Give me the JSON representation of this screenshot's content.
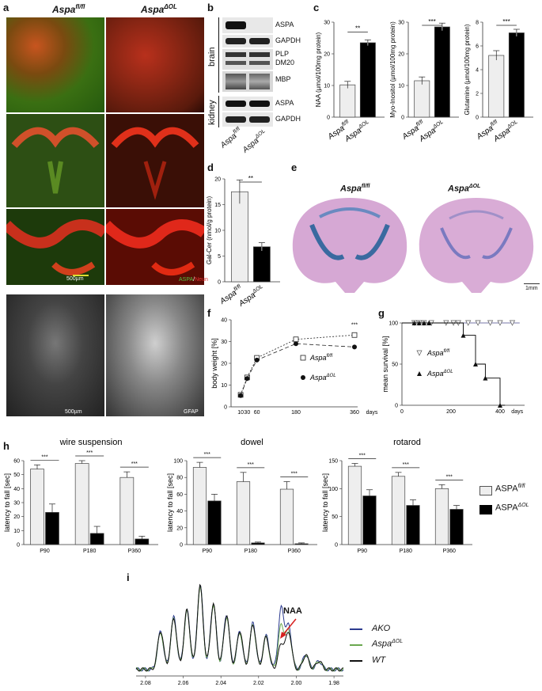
{
  "panels": {
    "a": {
      "letter": "a",
      "col1": "Aspa",
      "col1_sup": "fl/fl",
      "col2": "Aspa",
      "col2_sup": "ΔOL",
      "scale1": "500µm",
      "stain1": "ASPA",
      "stain1_sep": "/",
      "stain2": "Neun",
      "scale2": "500µm",
      "stain3": "GFAP"
    },
    "b": {
      "letter": "b",
      "groups": [
        "brain",
        "kidney"
      ],
      "bands": [
        "ASPA",
        "GAPDH",
        "PLP",
        "DM20",
        "MBP",
        "ASPA",
        "GAPDH"
      ],
      "xlabels": [
        {
          "t": "Aspa",
          "sup": "fl/fl"
        },
        {
          "t": "Aspa",
          "sup": "ΔOL"
        }
      ]
    },
    "c": {
      "letter": "c"
    },
    "d": {
      "letter": "d"
    },
    "e": {
      "letter": "e",
      "label1": "Aspa",
      "label1_sup": "fl/fl",
      "label2": "Aspa",
      "label2_sup": "ΔOL",
      "scale": "1mm"
    },
    "f": {
      "letter": "f"
    },
    "g": {
      "letter": "g"
    },
    "h": {
      "letter": "h",
      "legend": [
        {
          "t": "ASPA",
          "sup": "fl/fl"
        },
        {
          "t": "ASPA",
          "sup": "ΔOL"
        }
      ]
    },
    "i": {
      "letter": "i",
      "annotation": "NAA",
      "legend": [
        {
          "t": "AKO",
          "sup": "",
          "color": "#2b3a8f"
        },
        {
          "t": "Aspa",
          "sup": "ΔOL",
          "color": "#6aa84f"
        },
        {
          "t": "WT",
          "sup": "",
          "color": "#111111"
        }
      ]
    }
  },
  "chart_data": [
    {
      "id": "c1",
      "type": "bar",
      "categories": [
        "Aspa fl/fl",
        "Aspa ΔOL"
      ],
      "values": [
        10.2,
        23.5
      ],
      "errors": [
        1.1,
        0.9
      ],
      "ylabel": "NAA (µmol/100mg protein)",
      "ylim": [
        0,
        30
      ],
      "yticks": [
        0,
        10,
        20,
        30
      ],
      "significance": "**",
      "colors": [
        "#eeeeee",
        "#000000"
      ]
    },
    {
      "id": "c2",
      "type": "bar",
      "categories": [
        "Aspa fl/fl",
        "Aspa ΔOL"
      ],
      "values": [
        11.5,
        28.5
      ],
      "errors": [
        1.2,
        1.2
      ],
      "ylabel": "Myo-Inositol (µmol/100mg protein)",
      "ylim": [
        0,
        30
      ],
      "yticks": [
        0,
        10,
        20,
        30
      ],
      "significance": "***",
      "colors": [
        "#eeeeee",
        "#000000"
      ]
    },
    {
      "id": "c3",
      "type": "bar",
      "categories": [
        "Aspa fl/fl",
        "Aspa ΔOL"
      ],
      "values": [
        5.2,
        7.1
      ],
      "errors": [
        0.4,
        0.3
      ],
      "ylabel": "Glutamine (µmol/100mg protein)",
      "ylim": [
        0,
        8
      ],
      "yticks": [
        0,
        2,
        4,
        6,
        8
      ],
      "significance": "***",
      "colors": [
        "#eeeeee",
        "#000000"
      ]
    },
    {
      "id": "d",
      "type": "bar",
      "categories": [
        "Aspa fl/fl",
        "Aspa ΔOL"
      ],
      "values": [
        17.5,
        6.8
      ],
      "errors": [
        2.3,
        0.8
      ],
      "ylabel": "Gal-Cer (nmol/g protein)",
      "ylim": [
        0,
        20
      ],
      "yticks": [
        0,
        5,
        10,
        15,
        20
      ],
      "significance": "**",
      "colors": [
        "#eeeeee",
        "#000000"
      ]
    },
    {
      "id": "f",
      "type": "line",
      "x": [
        10,
        30,
        60,
        180,
        360
      ],
      "xticks": [
        10,
        30,
        60,
        180,
        360
      ],
      "xunit": "days",
      "series": [
        {
          "name": "Aspa fl/fl",
          "values": [
            5.5,
            13.5,
            22.5,
            31,
            33
          ],
          "marker": "open-square"
        },
        {
          "name": "Aspa ΔOL",
          "values": [
            5.2,
            13,
            21.5,
            29,
            27.5
          ],
          "marker": "filled-circle"
        }
      ],
      "ylabel": "body weight [%]",
      "ylim": [
        0,
        40
      ],
      "yticks": [
        0,
        10,
        20,
        30,
        40
      ],
      "significance": "***"
    },
    {
      "id": "g",
      "type": "line",
      "step": true,
      "xticks": [
        0,
        200,
        400
      ],
      "xlim": [
        0,
        500
      ],
      "xunit": "days",
      "series": [
        {
          "name": "Aspa fl/fl",
          "x": [
            0,
            480
          ],
          "values": [
            100,
            100
          ],
          "color": "#7777aa",
          "markers_x": [
            50,
            70,
            90,
            120,
            180,
            210,
            230,
            270,
            310,
            360,
            400,
            450
          ],
          "marker": "open-triangle-down"
        },
        {
          "name": "Aspa ΔOL",
          "x": [
            0,
            250,
            250,
            300,
            300,
            340,
            340,
            400,
            400,
            420,
            420
          ],
          "values": [
            100,
            100,
            85,
            85,
            50,
            50,
            33,
            33,
            0,
            0,
            0
          ],
          "color": "#000000",
          "markers_x": [
            50,
            70,
            90,
            110,
            250,
            300,
            340,
            400
          ],
          "marker": "filled-triangle-up"
        }
      ],
      "ylabel": "mean survival [%]",
      "ylim": [
        0,
        100
      ],
      "yticks": [
        0,
        50,
        100
      ]
    },
    {
      "id": "h1",
      "type": "bar",
      "title": "wire suspension",
      "categories": [
        "P90",
        "P180",
        "P360"
      ],
      "series": [
        {
          "name": "ASPA fl/fl",
          "values": [
            54,
            58,
            48
          ],
          "errors": [
            3,
            2,
            4
          ]
        },
        {
          "name": "ASPA ΔOL",
          "values": [
            23,
            8,
            4
          ],
          "errors": [
            6,
            5,
            2
          ]
        }
      ],
      "ylabel": "latency to fall [sec]",
      "ylim": [
        0,
        60
      ],
      "yticks": [
        0,
        10,
        20,
        30,
        40,
        50,
        60
      ],
      "significance": [
        "***",
        "***",
        "***"
      ]
    },
    {
      "id": "h2",
      "type": "bar",
      "title": "dowel",
      "categories": [
        "P90",
        "P180",
        "P360"
      ],
      "series": [
        {
          "name": "ASPA fl/fl",
          "values": [
            92,
            75,
            66
          ],
          "errors": [
            6,
            11,
            9
          ]
        },
        {
          "name": "ASPA ΔOL",
          "values": [
            52,
            2,
            1
          ],
          "errors": [
            8,
            1,
            1
          ]
        }
      ],
      "ylabel": "latency to fall [sec]",
      "ylim": [
        0,
        100
      ],
      "yticks": [
        0,
        20,
        40,
        60,
        80,
        100
      ],
      "significance": [
        "***",
        "***",
        "***"
      ]
    },
    {
      "id": "h3",
      "type": "bar",
      "title": "rotarod",
      "categories": [
        "P90",
        "P180",
        "P360"
      ],
      "series": [
        {
          "name": "ASPA fl/fl",
          "values": [
            140,
            122,
            100
          ],
          "errors": [
            5,
            7,
            7
          ]
        },
        {
          "name": "ASPA ΔOL",
          "values": [
            87,
            70,
            63
          ],
          "errors": [
            11,
            10,
            7
          ]
        }
      ],
      "ylabel": "latency to fall [sec]",
      "ylim": [
        0,
        150
      ],
      "yticks": [
        0,
        50,
        100,
        150
      ],
      "significance": [
        "***",
        "***",
        "***"
      ]
    },
    {
      "id": "i",
      "type": "line",
      "xlim": [
        2.085,
        1.975
      ],
      "xticks": [
        2.08,
        2.06,
        2.04,
        2.02,
        2.0,
        1.98
      ],
      "xtick_labels": [
        "2.08",
        "2.06",
        "2.04",
        "2.02",
        "2.00",
        "1.98"
      ],
      "peaks_ppm": [
        2.072,
        2.065,
        2.058,
        2.051,
        2.044,
        2.037,
        2.03,
        2.023,
        2.016,
        2.008,
        2.004,
        1.995,
        1.988
      ],
      "series": [
        {
          "name": "AKO",
          "color": "#2b3a8f",
          "peak_heights": [
            0.45,
            0.62,
            0.7,
            1.0,
            0.78,
            0.65,
            0.45,
            0.55,
            0.4,
            0.72,
            0.5,
            0.18,
            0.1
          ]
        },
        {
          "name": "Aspa ΔOL",
          "color": "#6aa84f",
          "peak_heights": [
            0.44,
            0.6,
            0.69,
            0.97,
            0.76,
            0.63,
            0.44,
            0.53,
            0.38,
            0.52,
            0.45,
            0.17,
            0.1
          ]
        },
        {
          "name": "WT",
          "color": "#111111",
          "peak_heights": [
            0.46,
            0.61,
            0.71,
            0.99,
            0.77,
            0.64,
            0.46,
            0.54,
            0.39,
            0.3,
            0.44,
            0.17,
            0.1
          ]
        }
      ]
    }
  ]
}
